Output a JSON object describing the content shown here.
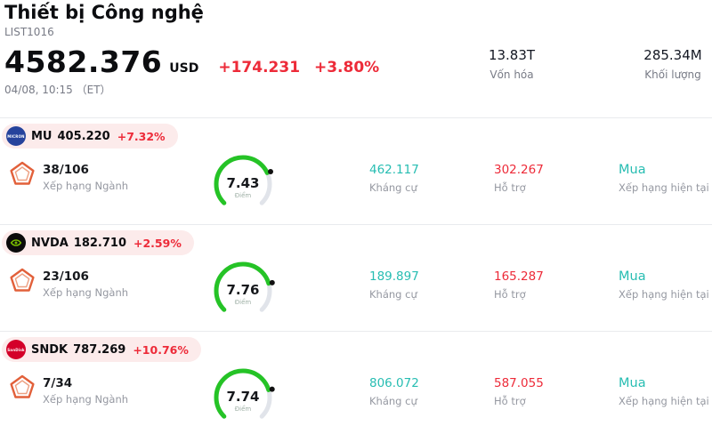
{
  "colors": {
    "red": "#ed2b39",
    "teal": "#27bdb2",
    "gauge_green": "#25c326",
    "gauge_track": "#e1e4ea",
    "pentagon_orange": "#e2603a",
    "pill_bg": "#fcebeb"
  },
  "header": {
    "title": "Thiết bị Công nghệ",
    "list_id": "LIST1016",
    "price": "4582.376",
    "currency": "USD",
    "change_abs": "+174.231",
    "change_pct": "+3.80%",
    "datetime": "04/08, 10:15 （ET）",
    "stats": [
      {
        "value": "13.83T",
        "label": "Vốn hóa"
      },
      {
        "value": "285.34M",
        "label": "Khối lượng"
      }
    ]
  },
  "labels": {
    "rank": "Xếp hạng Ngành",
    "score": "Điểm",
    "resistance": "Kháng cự",
    "support": "Hỗ trợ",
    "rating": "Xếp hạng hiện tại"
  },
  "stocks": [
    {
      "ticker": "MU",
      "price": "405.220",
      "change": "+7.32%",
      "logo_text": "MICRON",
      "logo_bg": "#26439c",
      "rank": "38/106",
      "score": 7.43,
      "resistance": "462.117",
      "support": "302.267",
      "rating": "Mua"
    },
    {
      "ticker": "NVDA",
      "price": "182.710",
      "change": "+2.59%",
      "logo_text": "",
      "logo_bg": "#0b0b0b",
      "rank": "23/106",
      "score": 7.76,
      "resistance": "189.897",
      "support": "165.287",
      "rating": "Mua"
    },
    {
      "ticker": "SNDK",
      "price": "787.269",
      "change": "+10.76%",
      "logo_text": "SanDisk",
      "logo_bg": "#d40029",
      "rank": "7/34",
      "score": 7.74,
      "resistance": "806.072",
      "support": "587.055",
      "rating": "Mua"
    }
  ]
}
